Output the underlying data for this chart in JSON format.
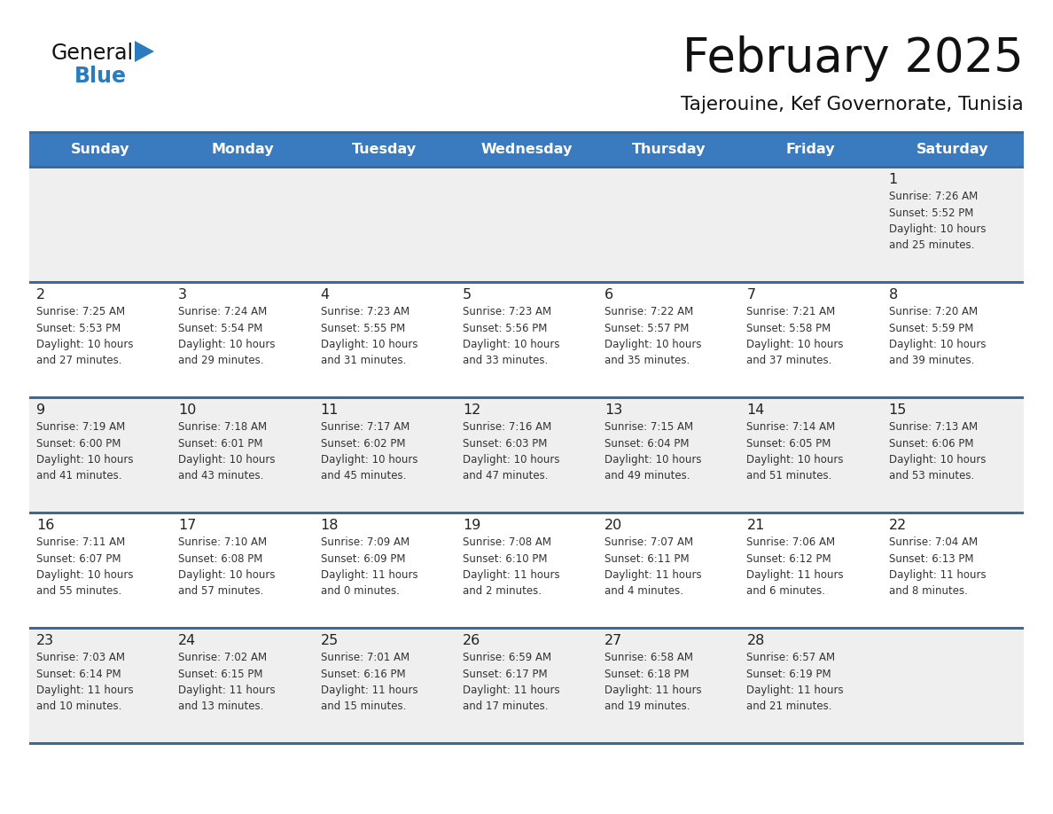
{
  "title": "February 2025",
  "subtitle": "Tajerouine, Kef Governorate, Tunisia",
  "days_of_week": [
    "Sunday",
    "Monday",
    "Tuesday",
    "Wednesday",
    "Thursday",
    "Friday",
    "Saturday"
  ],
  "header_bg": "#3a7bbf",
  "header_text": "#ffffff",
  "row_bg_week1": "#efefef",
  "row_bg_odd": "#ffffff",
  "row_bg_even": "#efefef",
  "separator_color": "#3a6a9a",
  "day_number_color": "#222222",
  "cell_text_color": "#333333",
  "title_color": "#111111",
  "subtitle_color": "#111111",
  "logo_general_color": "#111111",
  "logo_blue_color": "#2b7bbf",
  "calendar_data": [
    [
      "",
      "",
      "",
      "",
      "",
      "",
      "1\nSunrise: 7:26 AM\nSunset: 5:52 PM\nDaylight: 10 hours\nand 25 minutes."
    ],
    [
      "2\nSunrise: 7:25 AM\nSunset: 5:53 PM\nDaylight: 10 hours\nand 27 minutes.",
      "3\nSunrise: 7:24 AM\nSunset: 5:54 PM\nDaylight: 10 hours\nand 29 minutes.",
      "4\nSunrise: 7:23 AM\nSunset: 5:55 PM\nDaylight: 10 hours\nand 31 minutes.",
      "5\nSunrise: 7:23 AM\nSunset: 5:56 PM\nDaylight: 10 hours\nand 33 minutes.",
      "6\nSunrise: 7:22 AM\nSunset: 5:57 PM\nDaylight: 10 hours\nand 35 minutes.",
      "7\nSunrise: 7:21 AM\nSunset: 5:58 PM\nDaylight: 10 hours\nand 37 minutes.",
      "8\nSunrise: 7:20 AM\nSunset: 5:59 PM\nDaylight: 10 hours\nand 39 minutes."
    ],
    [
      "9\nSunrise: 7:19 AM\nSunset: 6:00 PM\nDaylight: 10 hours\nand 41 minutes.",
      "10\nSunrise: 7:18 AM\nSunset: 6:01 PM\nDaylight: 10 hours\nand 43 minutes.",
      "11\nSunrise: 7:17 AM\nSunset: 6:02 PM\nDaylight: 10 hours\nand 45 minutes.",
      "12\nSunrise: 7:16 AM\nSunset: 6:03 PM\nDaylight: 10 hours\nand 47 minutes.",
      "13\nSunrise: 7:15 AM\nSunset: 6:04 PM\nDaylight: 10 hours\nand 49 minutes.",
      "14\nSunrise: 7:14 AM\nSunset: 6:05 PM\nDaylight: 10 hours\nand 51 minutes.",
      "15\nSunrise: 7:13 AM\nSunset: 6:06 PM\nDaylight: 10 hours\nand 53 minutes."
    ],
    [
      "16\nSunrise: 7:11 AM\nSunset: 6:07 PM\nDaylight: 10 hours\nand 55 minutes.",
      "17\nSunrise: 7:10 AM\nSunset: 6:08 PM\nDaylight: 10 hours\nand 57 minutes.",
      "18\nSunrise: 7:09 AM\nSunset: 6:09 PM\nDaylight: 11 hours\nand 0 minutes.",
      "19\nSunrise: 7:08 AM\nSunset: 6:10 PM\nDaylight: 11 hours\nand 2 minutes.",
      "20\nSunrise: 7:07 AM\nSunset: 6:11 PM\nDaylight: 11 hours\nand 4 minutes.",
      "21\nSunrise: 7:06 AM\nSunset: 6:12 PM\nDaylight: 11 hours\nand 6 minutes.",
      "22\nSunrise: 7:04 AM\nSunset: 6:13 PM\nDaylight: 11 hours\nand 8 minutes."
    ],
    [
      "23\nSunrise: 7:03 AM\nSunset: 6:14 PM\nDaylight: 11 hours\nand 10 minutes.",
      "24\nSunrise: 7:02 AM\nSunset: 6:15 PM\nDaylight: 11 hours\nand 13 minutes.",
      "25\nSunrise: 7:01 AM\nSunset: 6:16 PM\nDaylight: 11 hours\nand 15 minutes.",
      "26\nSunrise: 6:59 AM\nSunset: 6:17 PM\nDaylight: 11 hours\nand 17 minutes.",
      "27\nSunrise: 6:58 AM\nSunset: 6:18 PM\nDaylight: 11 hours\nand 19 minutes.",
      "28\nSunrise: 6:57 AM\nSunset: 6:19 PM\nDaylight: 11 hours\nand 21 minutes.",
      ""
    ]
  ],
  "row_bg_colors": [
    "#efefef",
    "#ffffff",
    "#efefef",
    "#ffffff",
    "#efefef"
  ]
}
